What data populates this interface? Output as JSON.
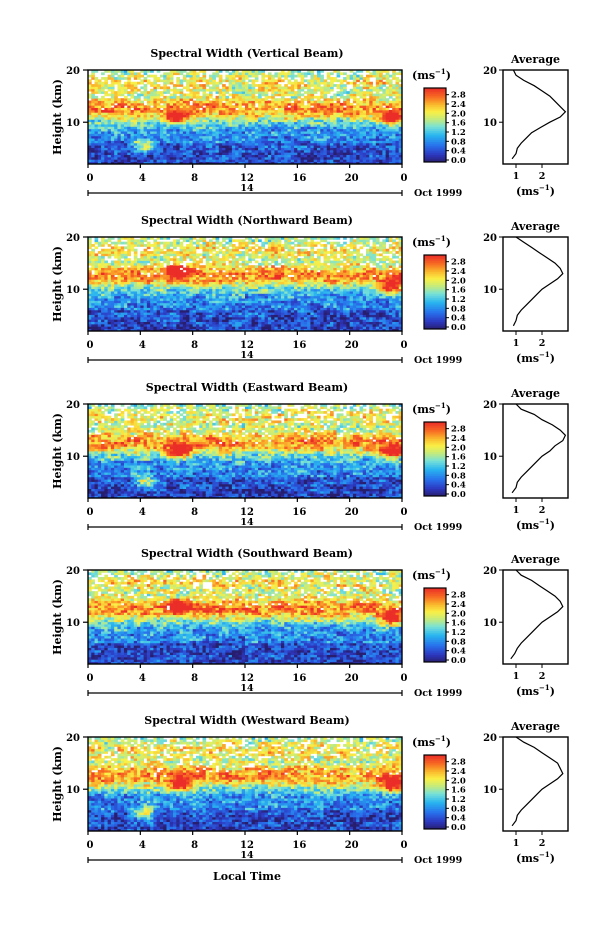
{
  "figure": {
    "xlabel": "Local Time",
    "date_main": "14",
    "date_note": "Oct 1999",
    "ylabel": "Height (km)",
    "unit_label": "(ms",
    "unit_exp": "−1",
    "average_title": "Average"
  },
  "chart_data": [
    {
      "type": "heatmap",
      "title": "Spectral Width (Vertical Beam)",
      "xlabel": "Local Time",
      "ylabel": "Height (km)",
      "x_ticks": [
        "0",
        "4",
        "8",
        "12",
        "16",
        "20",
        "0"
      ],
      "x_range": [
        0,
        24
      ],
      "y_ticks": [
        "20",
        "10"
      ],
      "y_range": [
        2,
        20
      ],
      "colorbar_ticks": [
        "2.8",
        "2.4",
        "2.0",
        "1.6",
        "1.2",
        "0.8",
        "0.4",
        "0.0"
      ],
      "colorbar_range": [
        0,
        3.0
      ],
      "features": [
        {
          "time": 6.8,
          "height": 10.8,
          "width": 2.9
        },
        {
          "time": 23.2,
          "height": 10.8,
          "width": 2.9
        },
        {
          "time": 4.4,
          "height": 5.5,
          "width": 2.6
        }
      ],
      "average_profile": {
        "xlabel": "(ms-1)",
        "x_ticks": [
          "1",
          "2"
        ],
        "x_range": [
          0.5,
          3.0
        ],
        "y_ticks": [
          "20",
          "10"
        ],
        "height": [
          3,
          4,
          5,
          6,
          7,
          8,
          9,
          10,
          11,
          12,
          13,
          14,
          15,
          16,
          17,
          18,
          19,
          20
        ],
        "width": [
          0.85,
          1.0,
          1.05,
          1.2,
          1.4,
          1.6,
          1.95,
          2.3,
          2.7,
          2.9,
          2.7,
          2.5,
          2.3,
          2.0,
          1.7,
          1.3,
          1.0,
          0.9
        ]
      }
    },
    {
      "type": "heatmap",
      "title": "Spectral Width (Northward Beam)",
      "xlabel": "Local Time",
      "ylabel": "Height (km)",
      "x_ticks": [
        "0",
        "4",
        "8",
        "12",
        "16",
        "20",
        "0"
      ],
      "x_range": [
        0,
        24
      ],
      "y_ticks": [
        "20",
        "10"
      ],
      "y_range": [
        2,
        20
      ],
      "colorbar_ticks": [
        "2.8",
        "2.4",
        "2.0",
        "1.6",
        "1.2",
        "0.8",
        "0.4",
        "0.0"
      ],
      "colorbar_range": [
        0,
        3.0
      ],
      "features": [
        {
          "time": 23.2,
          "height": 10.6,
          "width": 2.9
        },
        {
          "time": 7.0,
          "height": 13.5,
          "width": 2.8
        }
      ],
      "average_profile": {
        "xlabel": "(ms-1)",
        "x_ticks": [
          "1",
          "2"
        ],
        "x_range": [
          0.5,
          3.0
        ],
        "y_ticks": [
          "20",
          "10"
        ],
        "height": [
          3,
          4,
          5,
          6,
          7,
          8,
          9,
          10,
          11,
          12,
          13,
          14,
          15,
          16,
          17,
          18,
          19,
          20
        ],
        "width": [
          0.9,
          1.0,
          1.05,
          1.2,
          1.4,
          1.6,
          1.8,
          2.0,
          2.3,
          2.6,
          2.8,
          2.7,
          2.5,
          2.2,
          1.9,
          1.6,
          1.3,
          1.0
        ]
      }
    },
    {
      "type": "heatmap",
      "title": "Spectral Width (Eastward Beam)",
      "xlabel": "Local Time",
      "ylabel": "Height (km)",
      "x_ticks": [
        "0",
        "4",
        "8",
        "12",
        "16",
        "20",
        "0"
      ],
      "x_range": [
        0,
        24
      ],
      "y_ticks": [
        "20",
        "10"
      ],
      "y_range": [
        2,
        20
      ],
      "colorbar_ticks": [
        "2.8",
        "2.4",
        "2.0",
        "1.6",
        "1.2",
        "0.8",
        "0.4",
        "0.0"
      ],
      "colorbar_range": [
        0,
        3.0
      ],
      "features": [
        {
          "time": 7.0,
          "height": 11.0,
          "width": 2.9
        },
        {
          "time": 23.2,
          "height": 10.8,
          "width": 2.9
        },
        {
          "time": 4.4,
          "height": 5.3,
          "width": 2.6
        }
      ],
      "average_profile": {
        "xlabel": "(ms-1)",
        "x_ticks": [
          "1",
          "2"
        ],
        "x_range": [
          0.5,
          3.0
        ],
        "y_ticks": [
          "20",
          "10"
        ],
        "height": [
          3,
          4,
          5,
          6,
          7,
          8,
          9,
          10,
          11,
          12,
          13,
          14,
          15,
          16,
          17,
          18,
          19,
          20
        ],
        "width": [
          0.85,
          1.0,
          1.05,
          1.2,
          1.4,
          1.6,
          1.8,
          2.0,
          2.3,
          2.5,
          2.8,
          2.9,
          2.7,
          2.4,
          2.0,
          1.7,
          1.2,
          1.0
        ]
      }
    },
    {
      "type": "heatmap",
      "title": "Spectral Width (Southward Beam)",
      "xlabel": "Local Time",
      "ylabel": "Height (km)",
      "x_ticks": [
        "0",
        "4",
        "8",
        "12",
        "16",
        "20",
        "0"
      ],
      "x_range": [
        0,
        24
      ],
      "y_ticks": [
        "20",
        "10"
      ],
      "y_range": [
        2,
        20
      ],
      "colorbar_ticks": [
        "2.8",
        "2.4",
        "2.0",
        "1.6",
        "1.2",
        "0.8",
        "0.4",
        "0.0"
      ],
      "colorbar_range": [
        0,
        3.0
      ],
      "features": [
        {
          "time": 7.0,
          "height": 13.0,
          "width": 2.8
        },
        {
          "time": 23.2,
          "height": 10.8,
          "width": 2.9
        }
      ],
      "average_profile": {
        "xlabel": "(ms-1)",
        "x_ticks": [
          "1",
          "2"
        ],
        "x_range": [
          0.5,
          3.0
        ],
        "y_ticks": [
          "20",
          "10"
        ],
        "height": [
          3,
          4,
          5,
          6,
          7,
          8,
          9,
          10,
          11,
          12,
          13,
          14,
          15,
          16,
          17,
          18,
          19,
          20
        ],
        "width": [
          0.8,
          0.95,
          1.05,
          1.2,
          1.4,
          1.6,
          1.8,
          2.0,
          2.3,
          2.6,
          2.8,
          2.7,
          2.5,
          2.2,
          1.9,
          1.6,
          1.2,
          1.0
        ]
      }
    },
    {
      "type": "heatmap",
      "title": "Spectral Width (Westward Beam)",
      "xlabel": "Local Time",
      "ylabel": "Height (km)",
      "x_ticks": [
        "0",
        "4",
        "8",
        "12",
        "16",
        "20",
        "0"
      ],
      "x_range": [
        0,
        24
      ],
      "y_ticks": [
        "20",
        "10"
      ],
      "y_range": [
        2,
        20
      ],
      "colorbar_ticks": [
        "2.8",
        "2.4",
        "2.0",
        "1.6",
        "1.2",
        "0.8",
        "0.4",
        "0.0"
      ],
      "colorbar_range": [
        0,
        3.0
      ],
      "features": [
        {
          "time": 7.0,
          "height": 11.0,
          "width": 2.9
        },
        {
          "time": 23.2,
          "height": 10.8,
          "width": 2.9
        },
        {
          "time": 4.4,
          "height": 5.5,
          "width": 2.6
        }
      ],
      "average_profile": {
        "xlabel": "(ms-1)",
        "x_ticks": [
          "1",
          "2"
        ],
        "x_range": [
          0.5,
          3.0
        ],
        "y_ticks": [
          "20",
          "10"
        ],
        "height": [
          3,
          4,
          5,
          6,
          7,
          8,
          9,
          10,
          11,
          12,
          13,
          14,
          15,
          16,
          17,
          18,
          19,
          20
        ],
        "width": [
          0.85,
          1.0,
          1.05,
          1.2,
          1.4,
          1.6,
          1.8,
          2.0,
          2.3,
          2.6,
          2.8,
          2.7,
          2.6,
          2.3,
          2.0,
          1.7,
          1.3,
          1.0
        ]
      }
    }
  ]
}
